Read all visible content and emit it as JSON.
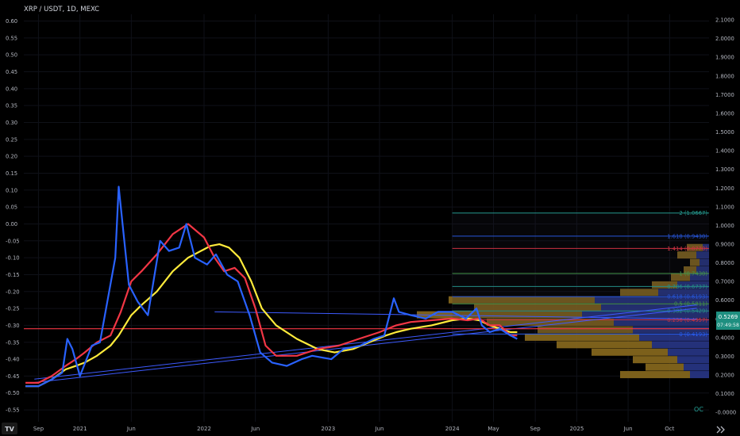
{
  "header": {
    "symbol": "XRP / USDT, 1D, MEXC"
  },
  "brand": {
    "logo_text": "TV"
  },
  "footer": {
    "watermark": "OC"
  },
  "colors": {
    "background": "#000000",
    "text": "#b2b5be",
    "grid": "#131722",
    "ema_yellow": "#ffeb3b",
    "ema_red": "#f23645",
    "ema_blue": "#2962ff",
    "horizontal_line": "#f23645",
    "trendline": "#3d5afe",
    "price_badge": "#1e8f80",
    "volume_up": "#26a69a",
    "volume_down": "#ef5350",
    "vp_brown": "#8a6a1e",
    "vp_blue": "#2a3a8f"
  },
  "chart_data": {
    "type": "line",
    "title": "XRP / USDT, 1D, MEXC",
    "x_axis": {
      "ticks": [
        "Sep",
        "2021",
        "Jun",
        "2022",
        "Jun",
        "2023",
        "Jun",
        "2024",
        "May",
        "Sep",
        "2025",
        "Jun",
        "Oct"
      ],
      "tick_dates": [
        "2020-09-01",
        "2021-01-01",
        "2021-06-01",
        "2022-01-01",
        "2022-06-01",
        "2023-01-01",
        "2023-06-01",
        "2024-01-01",
        "2024-05-01",
        "2024-09-01",
        "2025-01-01",
        "2025-06-01",
        "2025-10-01"
      ],
      "range": [
        "2020-07-20",
        "2026-01-25"
      ]
    },
    "left_axis": {
      "ticks": [
        "0.60",
        "0.55",
        "0.50",
        "0.45",
        "0.40",
        "0.35",
        "0.30",
        "0.25",
        "0.20",
        "0.15",
        "0.10",
        "0.05",
        "0.00",
        "-0.05",
        "-0.10",
        "-0.15",
        "-0.20",
        "-0.25",
        "-0.30",
        "-0.35",
        "-0.40",
        "-0.45",
        "-0.50",
        "-0.55"
      ],
      "range": [
        -0.585,
        0.62
      ]
    },
    "right_axis": {
      "ticks": [
        "2.1000",
        "2.0000",
        "1.9000",
        "1.8000",
        "1.7000",
        "1.6000",
        "1.5000",
        "1.4000",
        "1.3000",
        "1.2000",
        "1.1000",
        "1.0000",
        "0.9000",
        "0.8000",
        "0.7000",
        "0.6000",
        "0.5000",
        "0.4000",
        "0.3000",
        "0.2000",
        "0.1000",
        "-0.0000"
      ],
      "range": [
        -0.05,
        2.13
      ]
    },
    "price_line": {
      "value": -0.31,
      "axis": "left",
      "label": ""
    },
    "current_price": {
      "value": "0.5269",
      "countdown": "07:49:58"
    },
    "fibonacci": {
      "start_date": "2024-01-01",
      "levels": [
        {
          "label": "2 (1.0667)",
          "value": 1.0667,
          "color": "#26a69a"
        },
        {
          "label": "1.618 (0.9430)",
          "value": 0.943,
          "color": "#2962ff"
        },
        {
          "label": "1.414 (0.8770)",
          "value": 0.877,
          "color": "#f23645"
        },
        {
          "label": "1 (0.7430)",
          "value": 0.743,
          "color": "#4caf50"
        },
        {
          "label": "0.786 (0.6737)",
          "value": 0.6737,
          "color": "#26a69a"
        },
        {
          "label": "0.618 (0.6193)",
          "value": 0.6193,
          "color": "#2962ff"
        },
        {
          "label": "0.5 (0.5811)",
          "value": 0.5811,
          "color": "#4caf50"
        },
        {
          "label": "0.382 (0.5429)",
          "value": 0.5429,
          "color": "#26a69a"
        },
        {
          "label": "0.236 (0.4957)",
          "value": 0.4957,
          "color": "#f23645"
        },
        {
          "label": "0 (0.4193)",
          "value": 0.4193,
          "color": "#2962ff"
        }
      ]
    },
    "trendlines": [
      {
        "from": [
          "2022-02-01",
          0.538
        ],
        "to": [
          "2025-12-20",
          0.5
        ]
      },
      {
        "from": [
          "2020-08-20",
          0.16
        ],
        "to": [
          "2025-12-20",
          0.557
        ]
      },
      {
        "from": [
          "2020-08-20",
          0.178
        ],
        "to": [
          "2025-12-20",
          0.575
        ]
      }
    ],
    "series": [
      {
        "name": "",
        "color": "#ffeb3b",
        "axis": "left",
        "x": [
          "2020-07-25",
          "2020-09-01",
          "2020-10-10",
          "2020-11-20",
          "2020-12-20",
          "2021-01-15",
          "2021-02-20",
          "2021-04-01",
          "2021-04-25",
          "2021-06-01",
          "2021-07-01",
          "2021-08-15",
          "2021-10-01",
          "2021-11-15",
          "2022-01-01",
          "2022-01-20",
          "2022-02-15",
          "2022-03-15",
          "2022-04-15",
          "2022-05-20",
          "2022-06-20",
          "2022-08-01",
          "2022-10-01",
          "2022-12-01",
          "2023-01-20",
          "2023-03-15",
          "2023-05-01",
          "2023-06-20",
          "2023-07-20",
          "2023-09-01",
          "2023-11-01",
          "2024-01-01",
          "2024-02-15",
          "2024-03-20",
          "2024-04-20",
          "2024-05-20",
          "2024-06-20",
          "2024-07-10"
        ],
        "values": [
          -0.48,
          -0.48,
          -0.46,
          -0.43,
          -0.42,
          -0.41,
          -0.39,
          -0.36,
          -0.33,
          -0.27,
          -0.24,
          -0.2,
          -0.14,
          -0.1,
          -0.075,
          -0.065,
          -0.06,
          -0.07,
          -0.1,
          -0.17,
          -0.25,
          -0.3,
          -0.34,
          -0.37,
          -0.38,
          -0.37,
          -0.35,
          -0.33,
          -0.32,
          -0.31,
          -0.3,
          -0.285,
          -0.28,
          -0.285,
          -0.3,
          -0.31,
          -0.32,
          -0.32
        ]
      },
      {
        "name": "",
        "color": "#f23645",
        "axis": "left",
        "x": [
          "2020-07-25",
          "2020-09-01",
          "2020-10-10",
          "2020-11-20",
          "2020-12-20",
          "2021-01-15",
          "2021-02-20",
          "2021-04-01",
          "2021-05-01",
          "2021-06-01",
          "2021-07-01",
          "2021-08-15",
          "2021-10-01",
          "2021-11-15",
          "2022-01-01",
          "2022-02-01",
          "2022-03-01",
          "2022-04-01",
          "2022-05-01",
          "2022-06-01",
          "2022-07-01",
          "2022-08-01",
          "2022-10-01",
          "2022-12-01",
          "2023-02-01",
          "2023-04-01",
          "2023-06-01",
          "2023-07-20",
          "2023-09-01",
          "2023-11-01",
          "2024-01-01",
          "2024-02-15",
          "2024-03-20",
          "2024-04-20",
          "2024-05-20",
          "2024-06-20",
          "2024-07-10"
        ],
        "values": [
          -0.47,
          -0.47,
          -0.45,
          -0.42,
          -0.4,
          -0.38,
          -0.35,
          -0.33,
          -0.26,
          -0.17,
          -0.14,
          -0.09,
          -0.03,
          0.0,
          -0.04,
          -0.1,
          -0.14,
          -0.13,
          -0.16,
          -0.25,
          -0.36,
          -0.39,
          -0.39,
          -0.37,
          -0.36,
          -0.34,
          -0.32,
          -0.3,
          -0.29,
          -0.285,
          -0.28,
          -0.285,
          -0.28,
          -0.3,
          -0.3,
          -0.33,
          -0.33
        ]
      },
      {
        "name": "",
        "color": "#2962ff",
        "axis": "left",
        "x": [
          "2020-07-25",
          "2020-09-01",
          "2020-10-10",
          "2020-11-10",
          "2020-11-25",
          "2020-12-10",
          "2021-01-01",
          "2021-02-05",
          "2021-03-01",
          "2021-04-15",
          "2021-04-25",
          "2021-05-25",
          "2021-06-20",
          "2021-07-20",
          "2021-08-25",
          "2021-09-20",
          "2021-10-20",
          "2021-11-10",
          "2021-12-05",
          "2022-01-10",
          "2022-02-05",
          "2022-03-10",
          "2022-04-10",
          "2022-05-15",
          "2022-06-15",
          "2022-07-20",
          "2022-09-01",
          "2022-10-15",
          "2022-11-15",
          "2023-01-10",
          "2023-02-15",
          "2023-04-05",
          "2023-05-15",
          "2023-06-15",
          "2023-07-13",
          "2023-07-28",
          "2023-09-01",
          "2023-10-15",
          "2023-11-20",
          "2024-01-01",
          "2024-02-10",
          "2024-03-12",
          "2024-03-28",
          "2024-04-20",
          "2024-05-20",
          "2024-06-20",
          "2024-07-10"
        ],
        "values": [
          -0.48,
          -0.48,
          -0.46,
          -0.44,
          -0.34,
          -0.37,
          -0.45,
          -0.36,
          -0.35,
          -0.1,
          0.11,
          -0.18,
          -0.23,
          -0.27,
          -0.05,
          -0.08,
          -0.07,
          0.0,
          -0.1,
          -0.12,
          -0.09,
          -0.15,
          -0.17,
          -0.27,
          -0.38,
          -0.41,
          -0.42,
          -0.4,
          -0.39,
          -0.4,
          -0.37,
          -0.36,
          -0.34,
          -0.33,
          -0.22,
          -0.26,
          -0.27,
          -0.28,
          -0.26,
          -0.26,
          -0.28,
          -0.25,
          -0.3,
          -0.32,
          -0.31,
          -0.33,
          -0.34
        ]
      }
    ],
    "volume_profile": {
      "axis": "right",
      "rows": [
        {
          "price": 0.2,
          "brown": 110,
          "blue": 30
        },
        {
          "price": 0.24,
          "brown": 60,
          "blue": 40
        },
        {
          "price": 0.28,
          "brown": 70,
          "blue": 50
        },
        {
          "price": 0.32,
          "brown": 120,
          "blue": 65
        },
        {
          "price": 0.36,
          "brown": 150,
          "blue": 90
        },
        {
          "price": 0.4,
          "brown": 180,
          "blue": 110
        },
        {
          "price": 0.44,
          "brown": 150,
          "blue": 120
        },
        {
          "price": 0.48,
          "brown": 200,
          "blue": 150
        },
        {
          "price": 0.52,
          "brown": 260,
          "blue": 200
        },
        {
          "price": 0.56,
          "brown": 200,
          "blue": 170
        },
        {
          "price": 0.6,
          "brown": 230,
          "blue": 180
        },
        {
          "price": 0.64,
          "brown": 60,
          "blue": 80
        },
        {
          "price": 0.68,
          "brown": 40,
          "blue": 50
        },
        {
          "price": 0.72,
          "brown": 30,
          "blue": 30
        },
        {
          "price": 0.76,
          "brown": 20,
          "blue": 20
        },
        {
          "price": 0.8,
          "brown": 15,
          "blue": 15
        },
        {
          "price": 0.84,
          "brown": 30,
          "blue": 20
        },
        {
          "price": 0.88,
          "brown": 25,
          "blue": 10
        }
      ]
    },
    "grid": true,
    "legend": "none"
  }
}
